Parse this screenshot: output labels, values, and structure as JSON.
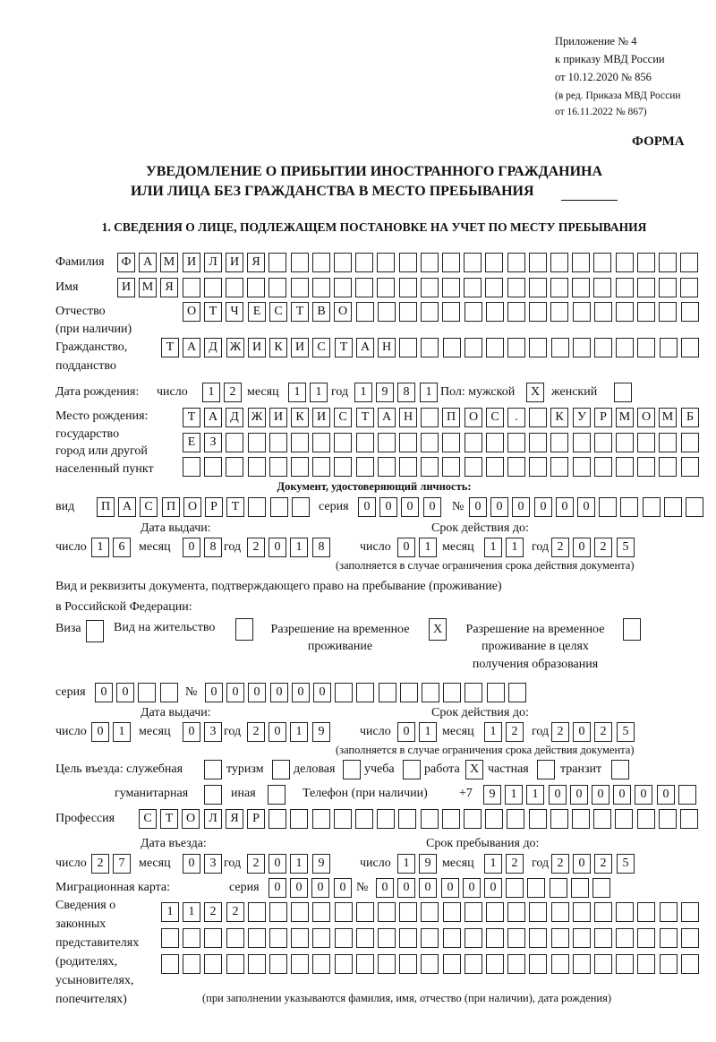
{
  "header": {
    "appendix": "Приложение № 4",
    "order": "к приказу МВД России",
    "order_date": "от 10.12.2020 № 856",
    "revision1": "(в ред. Приказа МВД России",
    "revision2": "от 16.11.2022 № 867)",
    "form_label": "ФОРМА"
  },
  "title": {
    "line1": "УВЕДОМЛЕНИЕ О ПРИБЫТИИ ИНОСТРАННОГО ГРАЖДАНИНА",
    "line2": "ИЛИ ЛИЦА БЕЗ ГРАЖДАНСТВА В МЕСТО ПРЕБЫВАНИЯ"
  },
  "section1": "1. СВЕДЕНИЯ О ЛИЦЕ, ПОДЛЕЖАЩЕМ ПОСТАНОВКЕ НА УЧЕТ ПО МЕСТУ ПРЕБЫВАНИЯ",
  "labels": {
    "surname": "Фамилия",
    "name": "Имя",
    "patronymic1": "Отчество",
    "patronymic2": "(при наличии)",
    "citizenship1": "Гражданство,",
    "citizenship2": "подданство",
    "birth_date": "Дата рождения:",
    "day": "число",
    "month": "месяц",
    "year": "год",
    "sex_male": "Пол: мужской",
    "sex_female": "женский",
    "birthplace1": "Место рождения:",
    "birthplace2": "государство",
    "birthplace3": "город или другой",
    "birthplace4": "населенный пункт",
    "id_doc_heading": "Документ, удостоверяющий личность:",
    "doc_type": "вид",
    "series": "серия",
    "number": "№",
    "issue_date": "Дата выдачи:",
    "valid_until": "Срок действия до:",
    "validity_note": "(заполняется в случае ограничения срока действия документа)",
    "stay_doc1": "Вид и реквизиты документа, подтверждающего право на пребывание (проживание)",
    "stay_doc2": "в Российской Федерации:",
    "visa": "Виза",
    "residence_permit": "Вид на жительство",
    "temp_residence1": "Разрешение на временное",
    "temp_residence2": "проживание",
    "temp_edu1": "Разрешение на временное",
    "temp_edu2": "проживание в целях",
    "temp_edu3": "получения образования",
    "purpose": "Цель въезда: служебная",
    "phone": "Телефон (при наличии)",
    "profession": "Профессия",
    "entry_date": "Дата въезда:",
    "stay_until": "Срок пребывания до:",
    "migration_card": "Миграционная карта:",
    "reps1": "Сведения о",
    "reps2": "законных",
    "reps3": "представителях",
    "reps4": "(родителях,",
    "reps5": "усыновителях,",
    "reps6": "попечителях)",
    "reps_note": "(при заполнении указываются фамилия, имя, отчество (при наличии), дата рождения)"
  },
  "values": {
    "surname": "ФАМИЛИЯ",
    "name": "ИМЯ",
    "patronymic": "ОТЧЕСТВО",
    "citizenship": "ТАДЖИКИСТАН",
    "birth": {
      "day": "12",
      "month": "11",
      "year": "1981"
    },
    "sex": {
      "male": "X",
      "female": ""
    },
    "birthplace": [
      "ТАДЖИКИСТАН ПОС. КУРМОМБ",
      "ЕЗ",
      ""
    ],
    "id_doc": {
      "type": "ПАСПОРТ",
      "series": "0000",
      "number": "000000",
      "issue": {
        "day": "16",
        "month": "08",
        "year": "2018"
      },
      "expiry": {
        "day": "01",
        "month": "11",
        "year": "2025"
      }
    },
    "stay_doc": {
      "visa": "",
      "residence_permit": "",
      "temp_residence": "X",
      "temp_residence_edu": "",
      "series": "00",
      "number": "000000",
      "issue": {
        "day": "01",
        "month": "03",
        "year": "2019"
      },
      "expiry": {
        "day": "01",
        "month": "12",
        "year": "2025"
      }
    },
    "purpose": {
      "service": {
        "label": "служебная",
        "mark": ""
      },
      "tourism": {
        "label": "туризм",
        "mark": ""
      },
      "business": {
        "label": "деловая",
        "mark": ""
      },
      "study": {
        "label": "учеба",
        "mark": ""
      },
      "work": {
        "label": "работа",
        "mark": "X"
      },
      "private": {
        "label": "частная",
        "mark": ""
      },
      "transit": {
        "label": "транзит",
        "mark": ""
      },
      "humanitarian": {
        "label": "гуманитарная",
        "mark": ""
      },
      "other": {
        "label": "иная",
        "mark": ""
      }
    },
    "phone_prefix": "+7",
    "phone": "911000000",
    "profession": "СТОЛЯР",
    "entry": {
      "day": "27",
      "month": "03",
      "year": "2019"
    },
    "stay_until": {
      "day": "19",
      "month": "12",
      "year": "2025"
    },
    "migration_card": {
      "series": "0000",
      "number": "000000"
    },
    "representatives": [
      "1122",
      "",
      ""
    ]
  }
}
